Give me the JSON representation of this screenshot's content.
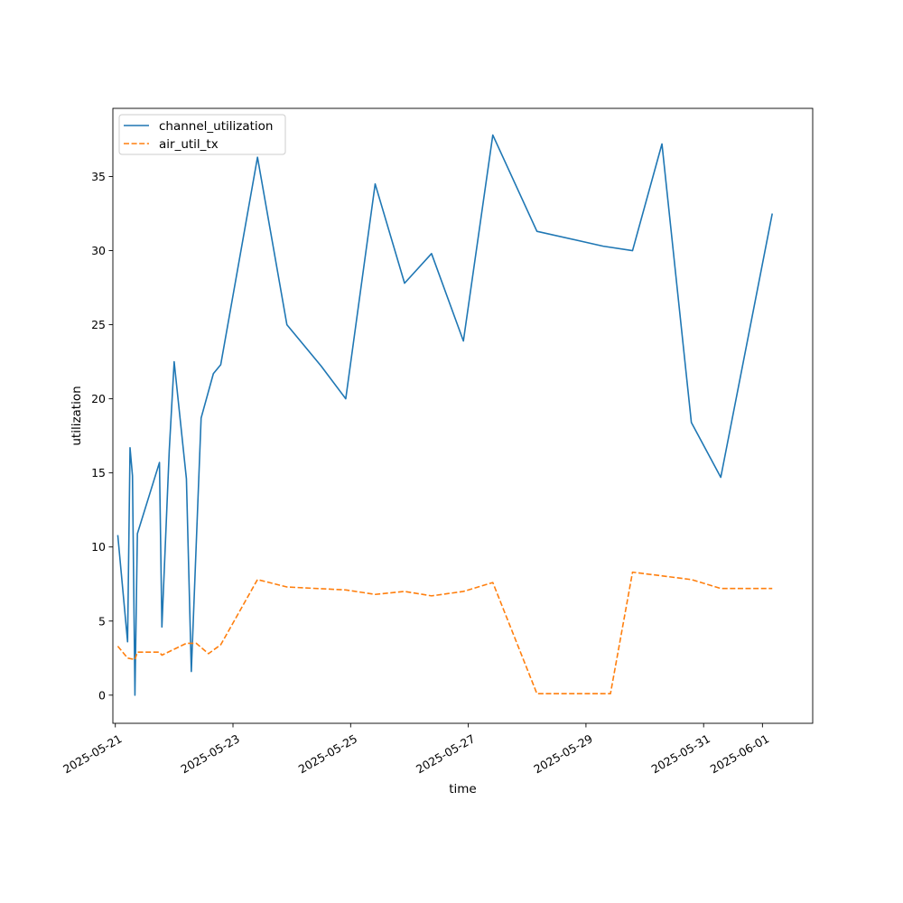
{
  "chart_data": {
    "type": "line",
    "title": "",
    "xlabel": "time",
    "ylabel": "utilization",
    "x_type": "datetime",
    "xlim": [
      "2025-05-20T23:00",
      "2025-06-01T20:30"
    ],
    "ylim": [
      -1.9,
      39.6
    ],
    "x_ticks": [
      {
        "value": "2025-05-21",
        "label": "2025-05-21"
      },
      {
        "value": "2025-05-23",
        "label": "2025-05-23"
      },
      {
        "value": "2025-05-25",
        "label": "2025-05-25"
      },
      {
        "value": "2025-05-27",
        "label": "2025-05-27"
      },
      {
        "value": "2025-05-29",
        "label": "2025-05-29"
      },
      {
        "value": "2025-05-31",
        "label": "2025-05-31"
      },
      {
        "value": "2025-06-01",
        "label": "2025-06-01"
      }
    ],
    "y_ticks": [
      {
        "value": 0,
        "label": "0"
      },
      {
        "value": 5,
        "label": "5"
      },
      {
        "value": 10,
        "label": "10"
      },
      {
        "value": 15,
        "label": "15"
      },
      {
        "value": 20,
        "label": "20"
      },
      {
        "value": 25,
        "label": "25"
      },
      {
        "value": 30,
        "label": "30"
      },
      {
        "value": 35,
        "label": "35"
      }
    ],
    "grid": false,
    "legend": {
      "position": "top-left"
    },
    "series": [
      {
        "name": "channel_utilization",
        "color": "#1f77b4",
        "dash": "solid",
        "points": [
          [
            "2025-05-21T01:00",
            10.8
          ],
          [
            "2025-05-21T05:00",
            3.6
          ],
          [
            "2025-05-21T06:00",
            16.7
          ],
          [
            "2025-05-21T07:00",
            14.8
          ],
          [
            "2025-05-21T08:00",
            0.0
          ],
          [
            "2025-05-21T09:00",
            10.9
          ],
          [
            "2025-05-21T18:00",
            15.7
          ],
          [
            "2025-05-21T19:00",
            4.6
          ],
          [
            "2025-05-21T22:00",
            16.5
          ],
          [
            "2025-05-22T00:00",
            22.5
          ],
          [
            "2025-05-22T05:00",
            14.6
          ],
          [
            "2025-05-22T07:00",
            1.6
          ],
          [
            "2025-05-22T11:00",
            18.7
          ],
          [
            "2025-05-22T16:00",
            21.7
          ],
          [
            "2025-05-22T19:00",
            22.3
          ],
          [
            "2025-05-23T10:00",
            36.3
          ],
          [
            "2025-05-23T22:00",
            25.0
          ],
          [
            "2025-05-24T12:00",
            22.2
          ],
          [
            "2025-05-24T22:00",
            20.0
          ],
          [
            "2025-05-25T10:00",
            34.5
          ],
          [
            "2025-05-25T22:00",
            27.8
          ],
          [
            "2025-05-26T09:00",
            29.8
          ],
          [
            "2025-05-26T22:00",
            23.9
          ],
          [
            "2025-05-27T10:00",
            37.8
          ],
          [
            "2025-05-28T04:00",
            31.3
          ],
          [
            "2025-05-29T07:00",
            30.3
          ],
          [
            "2025-05-29T19:00",
            30.0
          ],
          [
            "2025-05-30T07:00",
            37.2
          ],
          [
            "2025-05-30T19:00",
            18.4
          ],
          [
            "2025-05-31T07:00",
            14.7
          ],
          [
            "2025-06-01T04:00",
            32.5
          ]
        ]
      },
      {
        "name": "air_util_tx",
        "color": "#ff7f0e",
        "dash": "dashed",
        "points": [
          [
            "2025-05-21T01:00",
            3.3
          ],
          [
            "2025-05-21T05:00",
            2.5
          ],
          [
            "2025-05-21T08:00",
            2.4
          ],
          [
            "2025-05-21T09:00",
            2.9
          ],
          [
            "2025-05-21T18:00",
            2.9
          ],
          [
            "2025-05-21T19:00",
            2.7
          ],
          [
            "2025-05-22T05:00",
            3.5
          ],
          [
            "2025-05-22T09:00",
            3.5
          ],
          [
            "2025-05-22T14:00",
            2.8
          ],
          [
            "2025-05-22T19:00",
            3.4
          ],
          [
            "2025-05-23T10:00",
            7.8
          ],
          [
            "2025-05-23T22:00",
            7.3
          ],
          [
            "2025-05-24T22:00",
            7.1
          ],
          [
            "2025-05-25T10:00",
            6.8
          ],
          [
            "2025-05-25T22:00",
            7.0
          ],
          [
            "2025-05-26T09:00",
            6.7
          ],
          [
            "2025-05-26T22:00",
            7.0
          ],
          [
            "2025-05-27T10:00",
            7.6
          ],
          [
            "2025-05-28T04:00",
            0.1
          ],
          [
            "2025-05-29T07:00",
            0.1
          ],
          [
            "2025-05-29T10:00",
            0.1
          ],
          [
            "2025-05-29T19:00",
            8.3
          ],
          [
            "2025-05-30T19:00",
            7.8
          ],
          [
            "2025-05-31T07:00",
            7.2
          ],
          [
            "2025-06-01T04:00",
            7.2
          ]
        ]
      }
    ]
  }
}
